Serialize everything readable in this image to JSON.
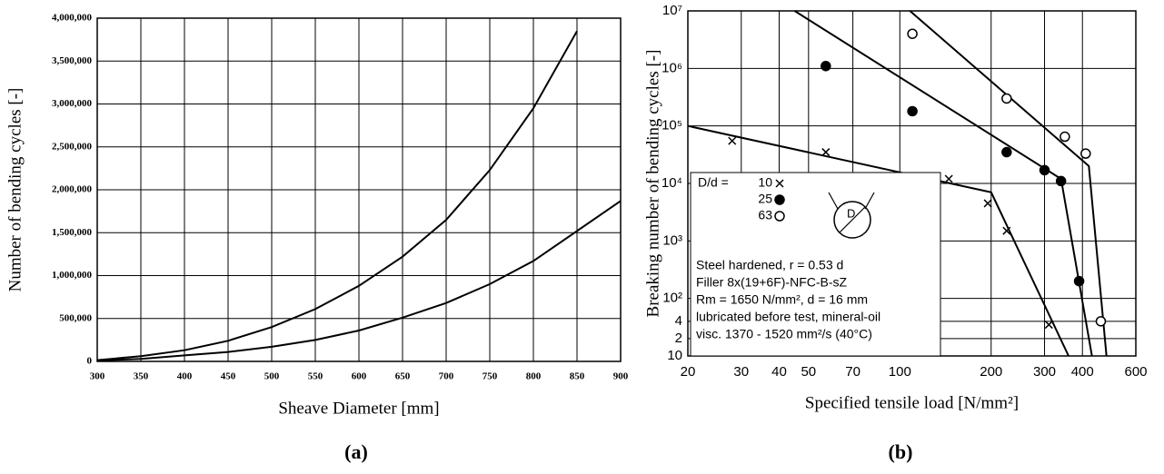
{
  "chart_data": [
    {
      "type": "line",
      "y_label": "Number of bending cycles [-]",
      "x_label": "Sheave Diameter [mm]",
      "caption": "(a)",
      "x": [
        300,
        350,
        400,
        450,
        500,
        550,
        600,
        650,
        700,
        750,
        800,
        850,
        900
      ],
      "series": [
        {
          "color": "#000000",
          "values": [
            15000,
            60000,
            130000,
            240000,
            400000,
            610000,
            880000,
            1220000,
            1650000,
            2230000,
            2950000,
            3850000,
            null
          ]
        },
        {
          "color": "#000000",
          "values": [
            10000,
            30000,
            70000,
            110000,
            170000,
            250000,
            360000,
            510000,
            680000,
            900000,
            1170000,
            1520000,
            1870000
          ]
        }
      ],
      "xlim": [
        300,
        900
      ],
      "xticks": [
        300,
        350,
        400,
        450,
        500,
        550,
        600,
        650,
        700,
        750,
        800,
        850,
        900
      ],
      "ylim": [
        0,
        4000000
      ],
      "yticks": [
        0,
        {
          "value": 500000,
          "label": "500,000"
        },
        {
          "value": 1000000,
          "label": "1,000,000"
        },
        {
          "value": 1500000,
          "label": "1,500,000"
        },
        {
          "value": 2000000,
          "label": "2,000,000"
        },
        {
          "value": 2500000,
          "label": "2,500,000"
        },
        {
          "value": 3000000,
          "label": "3,000,000"
        },
        {
          "value": 3500000,
          "label": "3,500,000"
        },
        {
          "value": 4000000,
          "label": "4,000,000"
        }
      ],
      "grid": true
    },
    {
      "type": "scatter",
      "y_label": "Breaking number of bending cycles [-]",
      "x_label": "Specified tensile load [N/mm²]",
      "caption": "(b)",
      "xscale": "log",
      "yscale": "log",
      "xlim": [
        20,
        600
      ],
      "xticks": [
        20,
        30,
        40,
        50,
        70,
        100,
        200,
        300,
        400,
        600
      ],
      "ylim": [
        10,
        10000000
      ],
      "yticks": [
        10,
        {
          "value": 20,
          "label": "2"
        },
        {
          "value": 40,
          "label": "4"
        },
        {
          "value": 100,
          "label": "10²"
        },
        {
          "value": 1000,
          "label": "10³"
        },
        {
          "value": 10000,
          "label": "10⁴"
        },
        {
          "value": 100000,
          "label": "10⁵"
        },
        {
          "value": 1000000,
          "label": "10⁶"
        },
        {
          "value": 10000000,
          "label": "10⁷"
        }
      ],
      "grid": true,
      "legend_title": "D/d =",
      "series": [
        {
          "name": "10",
          "marker": "x",
          "color": "#000000",
          "x": [
            28,
            57,
            145,
            195,
            225,
            310
          ],
          "values": [
            55000,
            35000,
            12000,
            4500,
            1500,
            35
          ],
          "line_x": [
            20,
            200,
            360
          ],
          "line_y": [
            100000,
            7000,
            10
          ]
        },
        {
          "name": "25",
          "marker": "filled",
          "color": "#000000",
          "x": [
            57,
            110,
            225,
            300,
            340,
            390
          ],
          "values": [
            1100000,
            180000,
            35000,
            17000,
            11000,
            200
          ],
          "line_x": [
            45,
            340,
            430
          ],
          "line_y": [
            10000000,
            12000,
            10
          ]
        },
        {
          "name": "63",
          "marker": "open",
          "color": "#000000",
          "x": [
            110,
            225,
            350,
            410,
            460
          ],
          "values": [
            4000000,
            300000,
            65000,
            33000,
            40
          ],
          "line_x": [
            108,
            420,
            480
          ],
          "line_y": [
            10000000,
            20000,
            10
          ]
        }
      ],
      "diagram_label": "D",
      "annotations": [
        "Steel hardened, r = 0.53 d",
        "Filler 8x(19+6F)-NFC-B-sZ",
        "Rm = 1650 N/mm², d = 16 mm",
        "lubricated before test, mineral-oil",
        "visc. 1370 - 1520 mm²/s (40°C)"
      ]
    }
  ]
}
